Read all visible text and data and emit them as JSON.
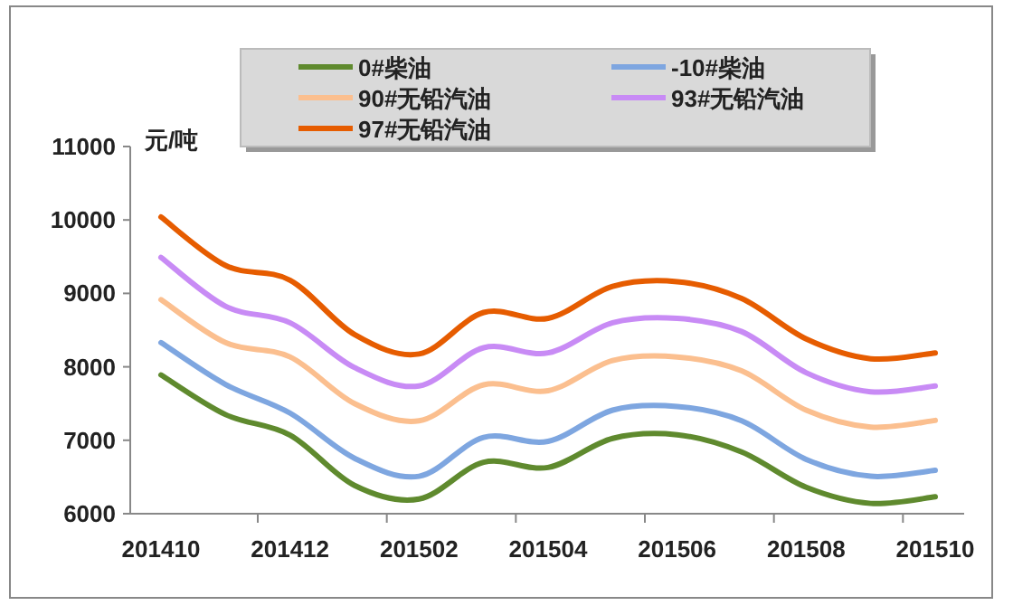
{
  "chart_data": {
    "type": "line",
    "ylabel": "元/吨",
    "legend": "top",
    "ylim": [
      6000,
      11000
    ],
    "yticks": [
      6000,
      7000,
      8000,
      9000,
      10000,
      11000
    ],
    "categories": [
      "201410",
      null,
      "201412",
      null,
      "201502",
      null,
      "201504",
      null,
      "201506",
      null,
      "201508",
      null,
      "201510"
    ],
    "series": [
      {
        "name": "0#柴油",
        "color": "#5f8a2e",
        "values": [
          7890,
          7350,
          7070,
          6385,
          6200,
          6700,
          6630,
          7025,
          7075,
          6840,
          6360,
          6140,
          6230
        ]
      },
      {
        "name": "-10#柴油",
        "color": "#7ea6e0",
        "values": [
          8330,
          7760,
          7370,
          6755,
          6510,
          7040,
          6985,
          7410,
          7460,
          7265,
          6740,
          6510,
          6590
        ]
      },
      {
        "name": "90#无铅汽油",
        "color": "#fbbf8f",
        "values": [
          8915,
          8330,
          8135,
          7500,
          7265,
          7755,
          7675,
          8085,
          8135,
          7945,
          7410,
          7180,
          7270
        ]
      },
      {
        "name": "93#无铅汽油",
        "color": "#c88bf5",
        "values": [
          9490,
          8825,
          8600,
          7990,
          7740,
          8260,
          8190,
          8600,
          8660,
          8480,
          7920,
          7660,
          7740
        ]
      },
      {
        "name": "97#无铅汽油",
        "color": "#e65c00",
        "values": [
          10040,
          9380,
          9180,
          8440,
          8175,
          8740,
          8660,
          9095,
          9160,
          8930,
          8380,
          8110,
          8190
        ]
      }
    ]
  }
}
